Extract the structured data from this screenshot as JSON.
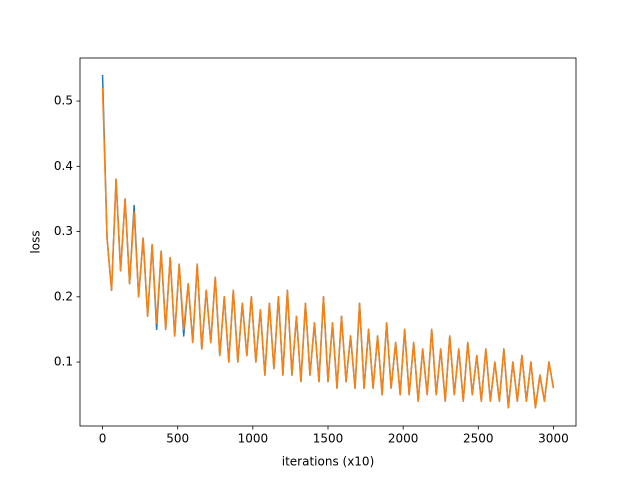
{
  "chart_data": {
    "type": "line",
    "xlabel": "iterations (x10)",
    "ylabel": "loss",
    "x": [
      0,
      30,
      60,
      90,
      120,
      150,
      180,
      210,
      240,
      270,
      300,
      330,
      360,
      390,
      420,
      450,
      480,
      510,
      540,
      570,
      600,
      630,
      660,
      690,
      720,
      750,
      780,
      810,
      840,
      870,
      900,
      930,
      960,
      990,
      1020,
      1050,
      1080,
      1110,
      1140,
      1170,
      1200,
      1230,
      1260,
      1290,
      1320,
      1350,
      1380,
      1410,
      1440,
      1470,
      1500,
      1530,
      1560,
      1590,
      1620,
      1650,
      1680,
      1710,
      1740,
      1770,
      1800,
      1830,
      1860,
      1890,
      1920,
      1950,
      1980,
      2010,
      2040,
      2070,
      2100,
      2130,
      2160,
      2190,
      2220,
      2250,
      2280,
      2310,
      2340,
      2370,
      2400,
      2430,
      2460,
      2490,
      2520,
      2550,
      2580,
      2610,
      2640,
      2670,
      2700,
      2730,
      2760,
      2790,
      2820,
      2850,
      2880,
      2910,
      2940,
      2970,
      3000
    ],
    "series": [
      {
        "color": "#1f77b4",
        "values": [
          0.54,
          0.29,
          0.21,
          0.38,
          0.24,
          0.35,
          0.22,
          0.34,
          0.2,
          0.29,
          0.17,
          0.28,
          0.15,
          0.27,
          0.15,
          0.26,
          0.14,
          0.25,
          0.14,
          0.22,
          0.13,
          0.25,
          0.12,
          0.21,
          0.13,
          0.23,
          0.11,
          0.2,
          0.1,
          0.21,
          0.1,
          0.19,
          0.11,
          0.2,
          0.1,
          0.18,
          0.08,
          0.19,
          0.09,
          0.2,
          0.08,
          0.21,
          0.08,
          0.17,
          0.07,
          0.19,
          0.08,
          0.16,
          0.07,
          0.2,
          0.07,
          0.16,
          0.06,
          0.17,
          0.07,
          0.14,
          0.06,
          0.19,
          0.06,
          0.15,
          0.06,
          0.14,
          0.05,
          0.16,
          0.06,
          0.13,
          0.05,
          0.15,
          0.05,
          0.13,
          0.04,
          0.12,
          0.05,
          0.15,
          0.05,
          0.12,
          0.04,
          0.14,
          0.05,
          0.12,
          0.04,
          0.13,
          0.05,
          0.11,
          0.04,
          0.12,
          0.04,
          0.1,
          0.04,
          0.12,
          0.03,
          0.1,
          0.04,
          0.11,
          0.04,
          0.1,
          0.03,
          0.08,
          0.04,
          0.1,
          0.06
        ]
      },
      {
        "color": "#ff7f0e",
        "values": [
          0.52,
          0.29,
          0.21,
          0.38,
          0.24,
          0.35,
          0.22,
          0.33,
          0.2,
          0.29,
          0.17,
          0.28,
          0.16,
          0.27,
          0.15,
          0.26,
          0.14,
          0.25,
          0.15,
          0.22,
          0.13,
          0.25,
          0.12,
          0.21,
          0.13,
          0.23,
          0.11,
          0.2,
          0.1,
          0.21,
          0.1,
          0.19,
          0.11,
          0.2,
          0.1,
          0.18,
          0.08,
          0.19,
          0.09,
          0.2,
          0.08,
          0.21,
          0.08,
          0.17,
          0.07,
          0.19,
          0.08,
          0.16,
          0.07,
          0.2,
          0.07,
          0.16,
          0.06,
          0.17,
          0.07,
          0.14,
          0.06,
          0.19,
          0.06,
          0.15,
          0.06,
          0.14,
          0.05,
          0.16,
          0.06,
          0.13,
          0.05,
          0.15,
          0.05,
          0.13,
          0.04,
          0.12,
          0.05,
          0.15,
          0.05,
          0.12,
          0.04,
          0.14,
          0.05,
          0.12,
          0.04,
          0.13,
          0.05,
          0.11,
          0.04,
          0.12,
          0.04,
          0.1,
          0.04,
          0.12,
          0.03,
          0.1,
          0.04,
          0.11,
          0.04,
          0.1,
          0.03,
          0.08,
          0.04,
          0.1,
          0.06
        ]
      }
    ],
    "xlim": [
      -150,
      3150
    ],
    "ylim": [
      0.002,
      0.566
    ],
    "xticks": [
      0,
      500,
      1000,
      1500,
      2000,
      2500,
      3000
    ],
    "yticks": [
      0.1,
      0.2,
      0.3,
      0.4,
      0.5
    ]
  }
}
